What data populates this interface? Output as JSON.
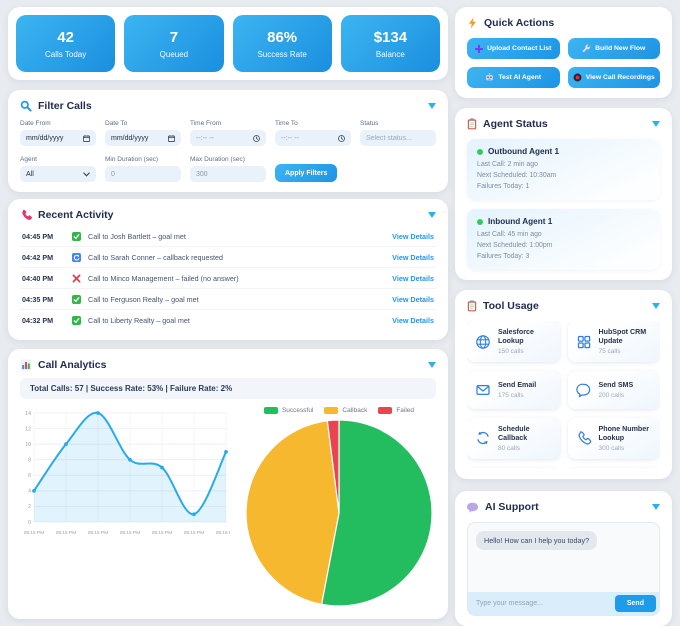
{
  "stats": [
    {
      "value": "42",
      "label": "Calls Today"
    },
    {
      "value": "7",
      "label": "Queued"
    },
    {
      "value": "86%",
      "label": "Success Rate"
    },
    {
      "value": "$134",
      "label": "Balance"
    }
  ],
  "quick_actions": {
    "title": "Quick Actions",
    "buttons": [
      {
        "label": "Upload Contact List",
        "icon": "plus-icon"
      },
      {
        "label": "Build New Flow",
        "icon": "wrench-icon"
      },
      {
        "label": "Test AI Agent",
        "icon": "robot-icon"
      },
      {
        "label": "View Call Recordings",
        "icon": "record-icon"
      }
    ]
  },
  "filter": {
    "title": "Filter Calls",
    "date_from": {
      "label": "Date From",
      "value": "mm/dd/yyyy"
    },
    "date_to": {
      "label": "Date To",
      "value": "mm/dd/yyyy"
    },
    "time_from": {
      "label": "Time From",
      "value": "--:-- --"
    },
    "time_to": {
      "label": "Time To",
      "value": "--:-- --"
    },
    "status": {
      "label": "Status",
      "placeholder": "Select status..."
    },
    "agent": {
      "label": "Agent",
      "value": "All"
    },
    "min_duration": {
      "label": "Min Duration (sec)",
      "value": "0"
    },
    "max_duration": {
      "label": "Max Duration (sec)",
      "value": "300"
    },
    "apply_label": "Apply Filters"
  },
  "recent_activity": {
    "title": "Recent Activity",
    "link_label": "View Details",
    "rows": [
      {
        "time": "04:45 PM",
        "status": "success",
        "text": "Call to Josh Bartlett – goal met"
      },
      {
        "time": "04:42 PM",
        "status": "callback",
        "text": "Call to Sarah Conner – callback requested"
      },
      {
        "time": "04:40 PM",
        "status": "failed",
        "text": "Call to Minco Management – failed (no answer)"
      },
      {
        "time": "04:35 PM",
        "status": "success",
        "text": "Call to Ferguson Realty – goal met"
      },
      {
        "time": "04:32 PM",
        "status": "success",
        "text": "Call to Liberty Realty – goal met"
      }
    ]
  },
  "analytics": {
    "title": "Call Analytics",
    "summary": "Total Calls: 57 | Success Rate: 53% | Failure Rate: 2%"
  },
  "chart_data": [
    {
      "type": "line",
      "x": [
        "05:15 PM",
        "05:15 PM",
        "05:15 PM",
        "05:15 PM",
        "05:15 PM",
        "05:15 PM",
        "05:15 PM"
      ],
      "values": [
        4,
        10,
        14,
        8,
        7,
        1,
        9
      ],
      "ylim": [
        0,
        14
      ],
      "ytick_step": 2,
      "grid": true,
      "legend_position": "none",
      "line_color": "#29abe8",
      "fill_color": "rgba(41,171,232,0.14)"
    },
    {
      "type": "pie",
      "labels": [
        "Successful",
        "Callback",
        "Failed"
      ],
      "values": [
        53,
        45,
        2
      ],
      "colors": [
        "#23bd5f",
        "#f5b82e",
        "#ea4352"
      ],
      "legend_position": "top"
    }
  ],
  "agent_status": {
    "title": "Agent Status",
    "agents": [
      {
        "name": "Outbound Agent 1",
        "last_call": "Last Call: 2 min ago",
        "next_scheduled": "Next Scheduled: 10:30am",
        "failures": "Failures Today: 1"
      },
      {
        "name": "Inbound Agent 1",
        "last_call": "Last Call: 45 min ago",
        "next_scheduled": "Next Scheduled: 1:00pm",
        "failures": "Failures Today: 3"
      }
    ]
  },
  "tool_usage": {
    "title": "Tool Usage",
    "tools": [
      {
        "name": "Salesforce Lookup",
        "calls": "150 calls",
        "icon": "globe-icon"
      },
      {
        "name": "HubSpot CRM Update",
        "calls": "75 calls",
        "icon": "grid-icon"
      },
      {
        "name": "Send Email",
        "calls": "175 calls",
        "icon": "envelope-icon"
      },
      {
        "name": "Send SMS",
        "calls": "200 calls",
        "icon": "sms-bubble-icon"
      },
      {
        "name": "Schedule Callback",
        "calls": "80 calls",
        "icon": "refresh-icon"
      },
      {
        "name": "Phone Number Lookup",
        "calls": "300 calls",
        "icon": "phone-icon"
      }
    ]
  },
  "ai_support": {
    "title": "AI Support",
    "message": "Hello! How can I help you today?",
    "input_placeholder": "Type your message...",
    "send_label": "Send"
  },
  "colors": {
    "accent": "#2196f3",
    "success": "#23bd5f",
    "warning": "#f5b82e",
    "danger": "#ea4352"
  }
}
